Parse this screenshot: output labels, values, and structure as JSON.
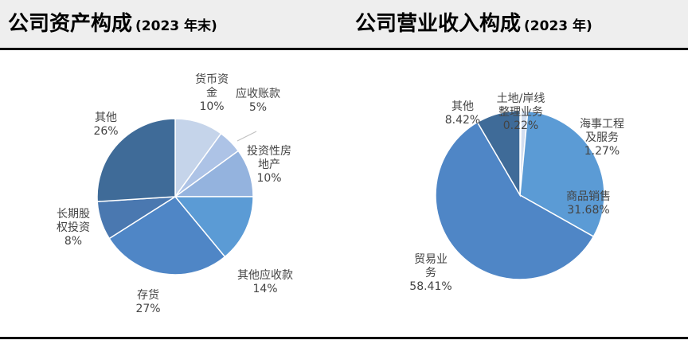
{
  "left_panel": {
    "title": "公司资产构成",
    "subtitle": "(2023 年末)"
  },
  "right_panel": {
    "title": "公司营业收入构成",
    "subtitle": "(2023 年)"
  },
  "chart_data": [
    {
      "type": "pie",
      "title": "公司资产构成",
      "subtitle": "(2023 年末)",
      "slices": [
        {
          "label_lines": [
            "货币资",
            "金"
          ],
          "value_text": "10%",
          "value": 10,
          "color": "#c5d4ea"
        },
        {
          "label_lines": [
            "应收账款"
          ],
          "value_text": "5%",
          "value": 5,
          "color": "#adc3e6"
        },
        {
          "label_lines": [
            "投资性房",
            "地产"
          ],
          "value_text": "10%",
          "value": 10,
          "color": "#94b3de"
        },
        {
          "label_lines": [
            "其他应收款"
          ],
          "value_text": "14%",
          "value": 14,
          "color": "#5b9bd5"
        },
        {
          "label_lines": [
            "存货"
          ],
          "value_text": "27%",
          "value": 27,
          "color": "#4f86c6"
        },
        {
          "label_lines": [
            "长期股",
            "权投资"
          ],
          "value_text": "8%",
          "value": 8,
          "color": "#4a78b0"
        },
        {
          "label_lines": [
            "其他"
          ],
          "value_text": "26%",
          "value": 26,
          "color": "#3f6b98"
        }
      ]
    },
    {
      "type": "pie",
      "title": "公司营业收入构成",
      "subtitle": "(2023 年)",
      "slices": [
        {
          "label_lines": [
            "土地/岸线",
            "整理业务"
          ],
          "value_text": "0.22%",
          "value": 0.22,
          "color": "#bdd0ea"
        },
        {
          "label_lines": [
            "海事工程",
            "及服务"
          ],
          "value_text": "1.27%",
          "value": 1.27,
          "color": "#d2def0"
        },
        {
          "label_lines": [
            "商品销售"
          ],
          "value_text": "31.68%",
          "value": 31.68,
          "color": "#5b9bd5"
        },
        {
          "label_lines": [
            "贸易业",
            "务"
          ],
          "value_text": "58.41%",
          "value": 58.41,
          "color": "#4f86c6"
        },
        {
          "label_lines": [
            "其他"
          ],
          "value_text": "8.42%",
          "value": 8.42,
          "color": "#3f6b98"
        }
      ]
    }
  ]
}
